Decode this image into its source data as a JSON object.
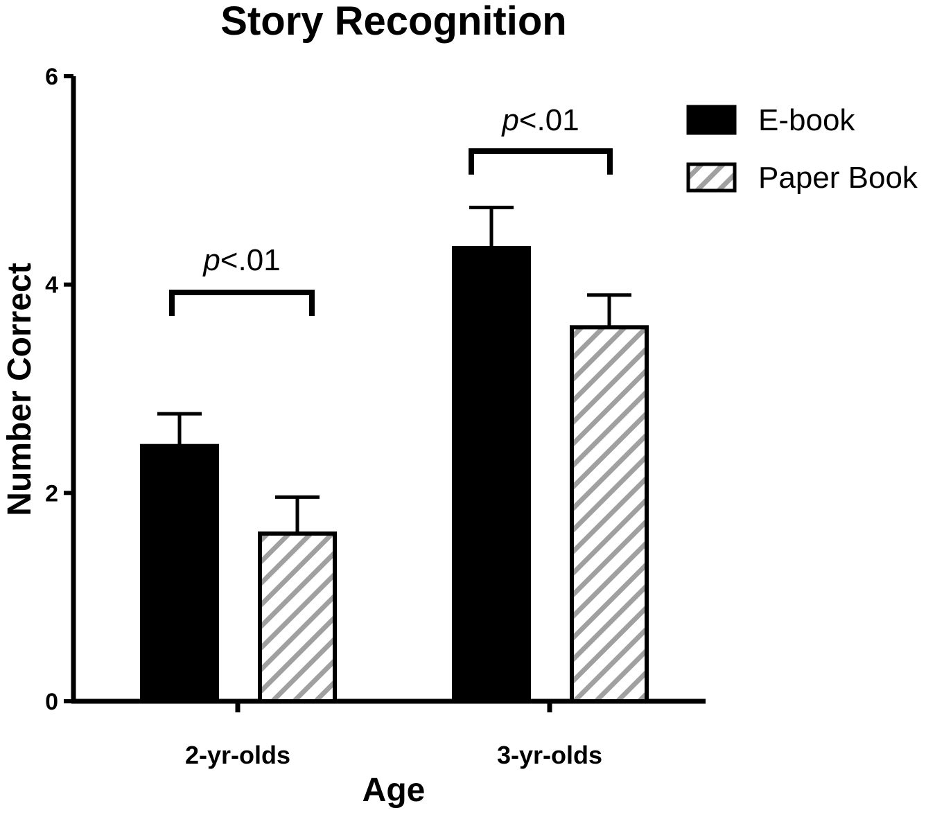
{
  "chart_data": {
    "type": "bar",
    "title": "Story Recognition",
    "xlabel": "Age",
    "ylabel": "Number Correct",
    "ylim": [
      0,
      6
    ],
    "yticks": [
      "0",
      "2",
      "4",
      "6"
    ],
    "categories": [
      "2-yr-olds",
      "3-yr-olds"
    ],
    "series": [
      {
        "name": "E-book",
        "values": [
          2.45,
          4.35
        ],
        "errors": [
          0.31,
          0.39
        ],
        "color": "#000000",
        "pattern": "solid"
      },
      {
        "name": "Paper Book",
        "values": [
          1.61,
          3.59
        ],
        "errors": [
          0.35,
          0.31
        ],
        "color": "#a0a0a0",
        "pattern": "diagonal-hatch"
      }
    ],
    "annotations": [
      {
        "category": "2-yr-olds",
        "prefix": "p",
        "text": "<.01"
      },
      {
        "category": "3-yr-olds",
        "prefix": "p",
        "text": "<.01"
      }
    ],
    "legend_position": "top-right",
    "grid": false
  }
}
